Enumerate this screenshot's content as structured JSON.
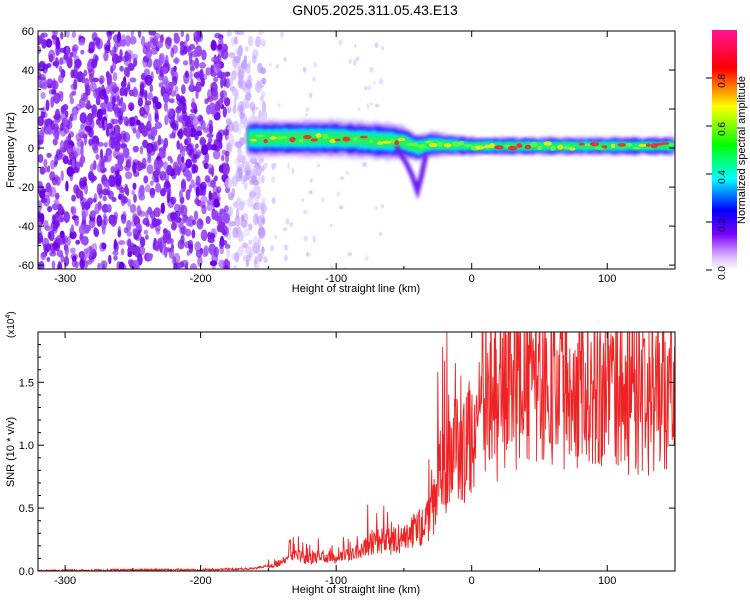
{
  "title": "GN05.2025.311.05.43.E13",
  "chart_data": [
    {
      "type": "heatmap",
      "title": "GN05.2025.311.05.43.E13",
      "xlabel": "Height of straight line (km)",
      "ylabel": "Frequency (Hz)",
      "xlim": [
        -320,
        150
      ],
      "ylim": [
        -62,
        60
      ],
      "x_ticks": [
        -300,
        -200,
        -100,
        0,
        100
      ],
      "x_tick_labels": [
        "-300",
        "-200",
        "-100",
        "0",
        "100"
      ],
      "y_ticks": [
        60,
        40,
        20,
        0,
        -20,
        -40,
        -60
      ],
      "y_tick_labels": [
        "60",
        "40",
        "20",
        "0",
        "-20",
        "-40",
        "-60"
      ],
      "colorbar": {
        "label": "Normalized spectral amplitude",
        "range": [
          0.0,
          1.0
        ],
        "ticks": [
          0.0,
          0.2,
          0.4,
          0.6,
          0.8
        ],
        "tick_labels": [
          "0.0",
          "0.2",
          "0.4",
          "0.6",
          "0.8"
        ],
        "colors": [
          "#ffffff",
          "#8a2be2",
          "#0000ff",
          "#00ffff",
          "#00ff00",
          "#ffff00",
          "#ff0000",
          "#ff1493"
        ]
      },
      "features": {
        "noise_region_x": [
          -320,
          -165
        ],
        "signal_band_x": [
          -165,
          150
        ],
        "signal_band_center_hz": [
          [
            -160,
            5
          ],
          [
            -100,
            5
          ],
          [
            -50,
            3
          ],
          [
            -40,
            0
          ],
          [
            -30,
            2
          ],
          [
            0,
            1
          ],
          [
            50,
            1
          ],
          [
            100,
            1
          ],
          [
            150,
            1
          ]
        ],
        "signal_band_halfwidth_hz": [
          [
            -160,
            8
          ],
          [
            -60,
            8
          ],
          [
            -40,
            6
          ],
          [
            0,
            4
          ],
          [
            150,
            4
          ]
        ],
        "dip_point": [
          -40,
          -22
        ]
      }
    },
    {
      "type": "line",
      "xlabel": "Height of straight line (km)",
      "ylabel": "SNR (10 * v/v)",
      "y_multiplier": "(x10",
      "y_multiplier_exp": "4",
      "xlim": [
        -320,
        150
      ],
      "ylim": [
        0,
        19000
      ],
      "x_ticks": [
        -300,
        -200,
        -100,
        0,
        100
      ],
      "x_tick_labels": [
        "-300",
        "-200",
        "-100",
        "0",
        "100"
      ],
      "y_ticks": [
        0,
        5000,
        10000,
        15000
      ],
      "y_tick_labels": [
        "0.0",
        "0.5",
        "1.0",
        "1.5"
      ],
      "line_color": "#ee2222",
      "envelope": [
        [
          -320,
          0
        ],
        [
          -300,
          50
        ],
        [
          -250,
          80
        ],
        [
          -200,
          100
        ],
        [
          -160,
          200
        ],
        [
          -150,
          400
        ],
        [
          -140,
          700
        ],
        [
          -130,
          1300
        ],
        [
          -120,
          900
        ],
        [
          -110,
          1200
        ],
        [
          -100,
          1000
        ],
        [
          -90,
          1300
        ],
        [
          -80,
          2000
        ],
        [
          -70,
          2600
        ],
        [
          -60,
          2300
        ],
        [
          -50,
          2700
        ],
        [
          -45,
          2900
        ],
        [
          -40,
          3600
        ],
        [
          -35,
          3400
        ],
        [
          -30,
          4500
        ],
        [
          -25,
          6500
        ],
        [
          -22,
          8500
        ],
        [
          -18,
          8000
        ],
        [
          -15,
          10000
        ],
        [
          -10,
          9500
        ],
        [
          -5,
          9500
        ],
        [
          0,
          11000
        ],
        [
          10,
          12500
        ],
        [
          20,
          13000
        ],
        [
          30,
          14500
        ],
        [
          40,
          15000
        ],
        [
          50,
          15200
        ],
        [
          60,
          14800
        ],
        [
          70,
          14700
        ],
        [
          80,
          14800
        ],
        [
          90,
          14600
        ],
        [
          100,
          14300
        ],
        [
          110,
          14000
        ],
        [
          120,
          13600
        ],
        [
          130,
          13400
        ],
        [
          140,
          13000
        ],
        [
          150,
          12800
        ]
      ],
      "spikes": [
        [
          -25,
          15800
        ],
        [
          -20,
          16700
        ],
        [
          -17,
          14000
        ],
        [
          -12,
          16500
        ],
        [
          -8,
          15500
        ],
        [
          35,
          19000
        ],
        [
          45,
          18200
        ],
        [
          55,
          18500
        ],
        [
          60,
          17500
        ]
      ]
    }
  ]
}
